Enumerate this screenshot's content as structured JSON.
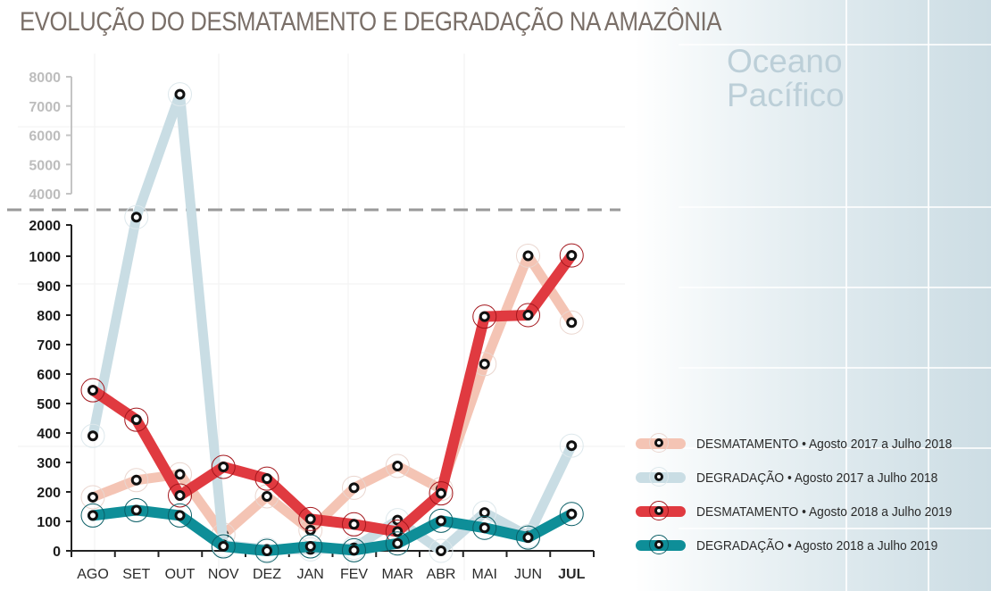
{
  "title": "EVOLUÇÃO DO DESMATAMENTO E DEGRADAÇÃO NA AMAZÔNIA",
  "background_label": [
    "Oceano",
    "Pacífico"
  ],
  "colors": {
    "desmatamento_2017": "#f4c4b4",
    "degradacao_2017": "#c9dde4",
    "desmatamento_2018": "#e03a40",
    "degradacao_2018": "#0e8e98",
    "title": "#7a6f68",
    "ocean_label": "#bccfd8"
  },
  "chart_data": {
    "type": "line",
    "title": "EVOLUÇÃO DO DESMATAMENTO E DEGRADAÇÃO NA AMAZÔNIA",
    "xlabel": "",
    "ylabel": "",
    "categories": [
      "AGO",
      "SET",
      "OUT",
      "NOV",
      "DEZ",
      "JAN",
      "FEV",
      "MAR",
      "ABR",
      "MAI",
      "JUN",
      "JUL"
    ],
    "highlighted_category": "JUL",
    "y_axis": {
      "broken": true,
      "lower_range": [
        0,
        1000
      ],
      "lower_ticks": [
        "0",
        "100",
        "200",
        "300",
        "400",
        "500",
        "600",
        "700",
        "800",
        "900",
        "1000",
        "2000"
      ],
      "upper_range": [
        4000,
        8000
      ],
      "upper_ticks": [
        "4000",
        "5000",
        "6000",
        "7000",
        "8000"
      ]
    },
    "grid": true,
    "legend_position": "bottom-right",
    "series": [
      {
        "name": "DESMATAMENTO • Agosto 2017 a Julho 2018",
        "key": "desmatamento_2017",
        "values": [
          182,
          240,
          260,
          55,
          185,
          70,
          214,
          288,
          210,
          634,
          1015,
          775
        ]
      },
      {
        "name": "DEGRADAÇÃO • Agosto 2017 a Julho 2018",
        "key": "degradacao_2017",
        "values": [
          390,
          2500,
          7400,
          20,
          5,
          5,
          10,
          104,
          0,
          130,
          50,
          357
        ]
      },
      {
        "name": "DESMATAMENTO • Agosto 2018 a Julho 2019",
        "key": "desmatamento_2018",
        "values": [
          545,
          445,
          188,
          285,
          245,
          108,
          90,
          65,
          195,
          795,
          800,
          1025
        ]
      },
      {
        "name": "DEGRADAÇÃO • Agosto 2018 a Julho 2019",
        "key": "degradacao_2018",
        "values": [
          120,
          138,
          120,
          15,
          0,
          15,
          2,
          25,
          102,
          78,
          45,
          125
        ]
      }
    ]
  },
  "legend": [
    {
      "series": "DESMATAMENTO",
      "period": "Agosto 2017 a Julho 2018",
      "label": "DESMATAMENTO • Agosto 2017 a Julho 2018"
    },
    {
      "series": "DEGRADAÇÃO",
      "period": "Agosto 2017 a Julho 2018",
      "label": "DEGRADAÇÃO • Agosto 2017 a Julho 2018"
    },
    {
      "series": "DESMATAMENTO",
      "period": "Agosto 2018 a Julho 2019",
      "label": "DESMATAMENTO • Agosto 2018 a Julho 2019"
    },
    {
      "series": "DEGRADAÇÃO",
      "period": "Agosto 2018 a Julho 2019",
      "label": "DEGRADAÇÃO • Agosto 2018 a Julho 2019"
    }
  ]
}
